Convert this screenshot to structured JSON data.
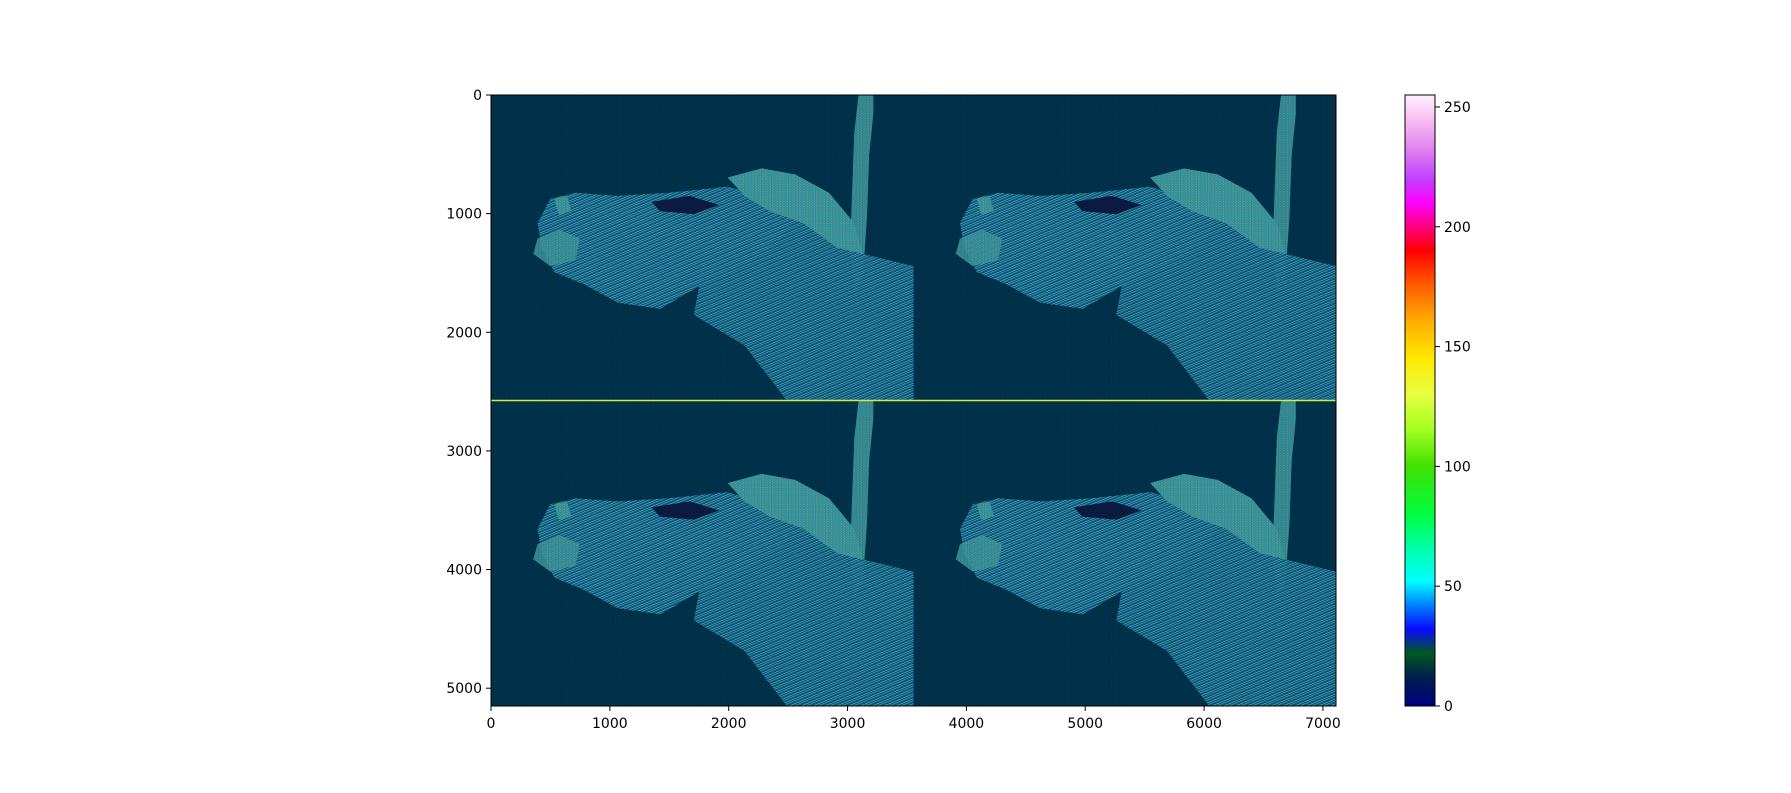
{
  "chart_data": {
    "type": "heatmap",
    "title": "",
    "xlabel": "",
    "ylabel": "",
    "image": {
      "description_layout": "2x2 tiled grid of the same zebra-head image",
      "tiles": 4,
      "tile_grid": [
        2,
        2
      ],
      "subject": "zebra head with tree trunk in background",
      "extent_x": [
        0,
        7110
      ],
      "extent_y": [
        5150,
        0
      ]
    },
    "xlim": [
      0,
      7110
    ],
    "ylim": [
      5150,
      0
    ],
    "x_ticks": [
      0,
      1000,
      2000,
      3000,
      4000,
      5000,
      6000,
      7000
    ],
    "x_tick_labels": [
      "0",
      "1000",
      "2000",
      "3000",
      "4000",
      "5000",
      "6000",
      "7000"
    ],
    "y_ticks": [
      0,
      1000,
      2000,
      3000,
      4000,
      5000
    ],
    "y_tick_labels": [
      "0",
      "1000",
      "2000",
      "3000",
      "4000",
      "5000"
    ],
    "colorbar": {
      "colormap": "gist_ncar",
      "range": [
        0,
        255
      ],
      "ticks": [
        0,
        50,
        100,
        150,
        200,
        250
      ],
      "tick_labels": [
        "0",
        "50",
        "100",
        "150",
        "200",
        "250"
      ],
      "stops": [
        {
          "v": 0,
          "color": "#000080"
        },
        {
          "v": 12,
          "color": "#001f4d"
        },
        {
          "v": 22,
          "color": "#005a1f"
        },
        {
          "v": 32,
          "color": "#0a0aff"
        },
        {
          "v": 42,
          "color": "#0080ff"
        },
        {
          "v": 52,
          "color": "#00ffff"
        },
        {
          "v": 65,
          "color": "#00ffb0"
        },
        {
          "v": 80,
          "color": "#00ff40"
        },
        {
          "v": 100,
          "color": "#40e000"
        },
        {
          "v": 115,
          "color": "#a0ff20"
        },
        {
          "v": 130,
          "color": "#e8ff40"
        },
        {
          "v": 145,
          "color": "#ffe800"
        },
        {
          "v": 160,
          "color": "#ffb000"
        },
        {
          "v": 175,
          "color": "#ff6000"
        },
        {
          "v": 190,
          "color": "#ff0000"
        },
        {
          "v": 200,
          "color": "#ff0080"
        },
        {
          "v": 210,
          "color": "#ff00ff"
        },
        {
          "v": 220,
          "color": "#c040ff"
        },
        {
          "v": 232,
          "color": "#e080f0"
        },
        {
          "v": 245,
          "color": "#f8c0f0"
        },
        {
          "v": 255,
          "color": "#fff0ff"
        }
      ]
    },
    "colors": {
      "background_dark": "#002a4a",
      "background_green": "#003c20",
      "stripe_cyan": "#40c8e0",
      "stripe_green": "#80e040",
      "stripe_yellow": "#f0f040"
    }
  }
}
